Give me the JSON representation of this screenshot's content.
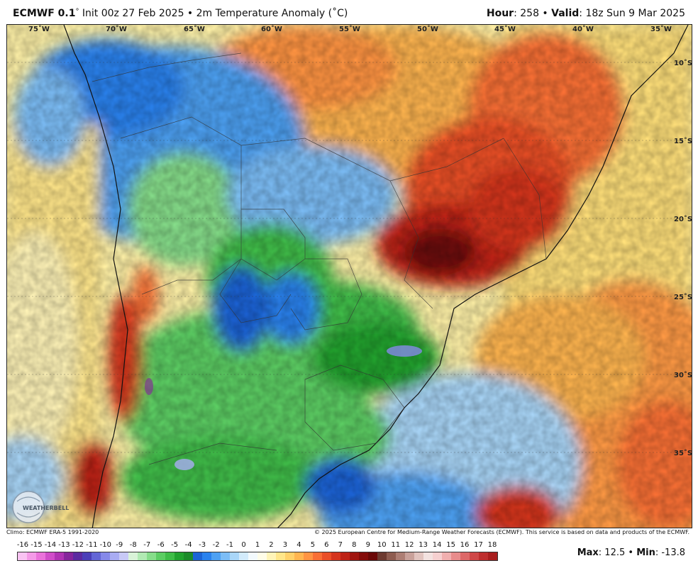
{
  "header": {
    "model": "ECMWF 0.1",
    "degree": "°",
    "init_text": " Init 00z 27 Feb 2025 • 2m Temperature Anomaly (˚C)",
    "hour_label": "Hour",
    "hour_value": ": 258 • ",
    "valid_label": "Valid",
    "valid_value": ": 18z Sun 9 Mar 2025"
  },
  "map": {
    "longitude_labels": [
      "75˚W",
      "70˚W",
      "65˚W",
      "60˚W",
      "55˚W",
      "50˚W",
      "45˚W",
      "40˚W",
      "35˚W"
    ],
    "latitude_labels": [
      "10˚S",
      "15˚S",
      "20˚S",
      "25˚S",
      "30˚S",
      "35˚S"
    ],
    "logo_text": "WEATHERBELL"
  },
  "footer": {
    "climo": "Climo: ECMWF ERA-5 1991-2020",
    "copyright": "© 2025 European Centre for Medium-Range Weather Forecasts (ECMWF). This service is based on data and products of the ECMWF."
  },
  "colorbar": {
    "labels": [
      "-16",
      "-15",
      "-14",
      "-13",
      "-12",
      "-11",
      "-10",
      "-9",
      "-8",
      "-7",
      "-6",
      "-5",
      "-4",
      "-3",
      "-2",
      "-1",
      "0",
      "1",
      "2",
      "3",
      "4",
      "5",
      "6",
      "7",
      "8",
      "9",
      "10",
      "11",
      "12",
      "13",
      "14",
      "15",
      "16",
      "17",
      "18"
    ],
    "colors": [
      "#f7b6f0",
      "#f08be4",
      "#e05fd6",
      "#c23fbf",
      "#9a2aa6",
      "#6e1f94",
      "#3f2ba8",
      "#5a5ccf",
      "#7d81e6",
      "#a6a8f0",
      "#c9cbf7",
      "#cdf3cf",
      "#9fe8a2",
      "#6cd871",
      "#3fc54a",
      "#23a830",
      "#1f8a2a",
      "#1a60d8",
      "#2f86f0",
      "#5aa8f5",
      "#8cc8f7",
      "#bfe2fa",
      "#e8f6fd",
      "#ffffff",
      "#fffbd6",
      "#fff2a8",
      "#ffe07a",
      "#ffc65a",
      "#ffa24a",
      "#ff7f3a",
      "#f45a2c",
      "#e03a20",
      "#c82418",
      "#a81410",
      "#880c0a",
      "#6a0808",
      "#7a4a3a",
      "#9a6a5a",
      "#b88c80",
      "#d4b0a8",
      "#ecd6d2",
      "#f8eeee",
      "#f7c8c8",
      "#f0a0a0",
      "#e47878",
      "#d85050",
      "#c83030"
    ],
    "palette_display": [
      "#f9c3f2",
      "#f49ae7",
      "#ea72da",
      "#d04dc9",
      "#b033b3",
      "#86259c",
      "#5c2aa0",
      "#4b3fb8",
      "#6466d6",
      "#8689e9",
      "#a9acf2",
      "#c8c9f6",
      "#d9f3d8",
      "#b1eab3",
      "#86dd8a",
      "#5ccd63",
      "#3fbd48",
      "#22a22f",
      "#1c8b2a",
      "#1c64d6",
      "#2a82ee",
      "#4ea1f3",
      "#7cbdf6",
      "#a9d6f8",
      "#d2ebfb",
      "#f3fafd",
      "#fffde8",
      "#fff4b8",
      "#ffe68a",
      "#ffd16a",
      "#ffb550",
      "#ff9443",
      "#f96f35",
      "#ea4f28",
      "#d5351e",
      "#bd2216",
      "#a01510",
      "#840c0a",
      "#6a0807",
      "#6d3a30",
      "#8e5c50",
      "#ad7e74",
      "#c9a19a",
      "#e2c4bf",
      "#f3e2e0",
      "#f6d0d0",
      "#f1afaf",
      "#e88c8c",
      "#dd6868",
      "#cf4747",
      "#be2e2e",
      "#a81e1e"
    ],
    "max_label": "Max",
    "max_value": ": 12.5 • ",
    "min_label": "Min",
    "min_value": ": -13.8"
  }
}
